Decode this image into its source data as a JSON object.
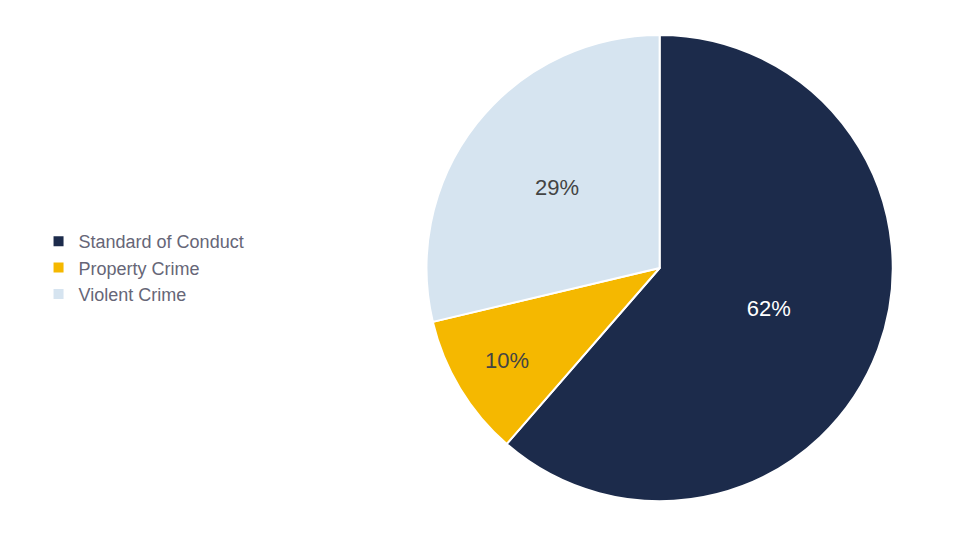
{
  "chart_data": {
    "type": "pie",
    "categories": [
      "Standard of Conduct",
      "Property Crime",
      "Violent Crime"
    ],
    "values": [
      62,
      10,
      29
    ],
    "value_labels": [
      "62%",
      "10%",
      "29%"
    ],
    "colors": [
      "#1c2b4b",
      "#f5b800",
      "#d6e4f0"
    ],
    "data_labels": true,
    "legend": "left"
  }
}
